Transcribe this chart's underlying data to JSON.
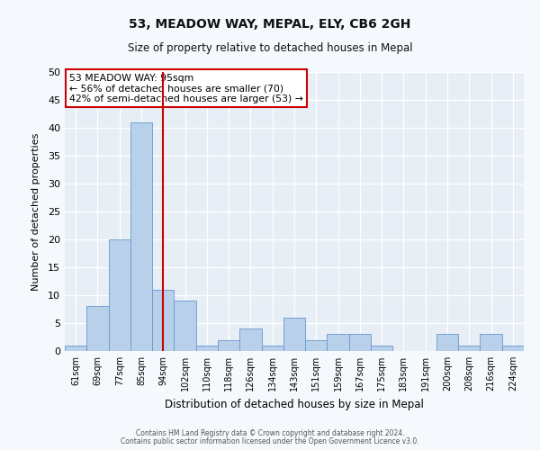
{
  "title": "53, MEADOW WAY, MEPAL, ELY, CB6 2GH",
  "subtitle": "Size of property relative to detached houses in Mepal",
  "xlabel": "Distribution of detached houses by size in Mepal",
  "ylabel": "Number of detached properties",
  "bin_labels": [
    "61sqm",
    "69sqm",
    "77sqm",
    "85sqm",
    "94sqm",
    "102sqm",
    "110sqm",
    "118sqm",
    "126sqm",
    "134sqm",
    "143sqm",
    "151sqm",
    "159sqm",
    "167sqm",
    "175sqm",
    "183sqm",
    "191sqm",
    "200sqm",
    "208sqm",
    "216sqm",
    "224sqm"
  ],
  "bar_heights": [
    1,
    8,
    20,
    41,
    11,
    9,
    1,
    2,
    4,
    1,
    6,
    2,
    3,
    3,
    1,
    0,
    0,
    3,
    1,
    3,
    1
  ],
  "bar_color": "#b8d0ea",
  "bar_edge_color": "#6699cc",
  "vline_x": 4.5,
  "vline_color": "#cc0000",
  "annotation_text": "53 MEADOW WAY: 95sqm\n← 56% of detached houses are smaller (70)\n42% of semi-detached houses are larger (53) →",
  "annotation_box_color": "#ffffff",
  "annotation_box_edge_color": "#cc0000",
  "ylim": [
    0,
    50
  ],
  "yticks": [
    0,
    5,
    10,
    15,
    20,
    25,
    30,
    35,
    40,
    45,
    50
  ],
  "fig_bg_color": "#f5f8fc",
  "ax_bg_color": "#e8eef6",
  "footer1": "Contains HM Land Registry data © Crown copyright and database right 2024.",
  "footer2": "Contains public sector information licensed under the Open Government Licence v3.0."
}
